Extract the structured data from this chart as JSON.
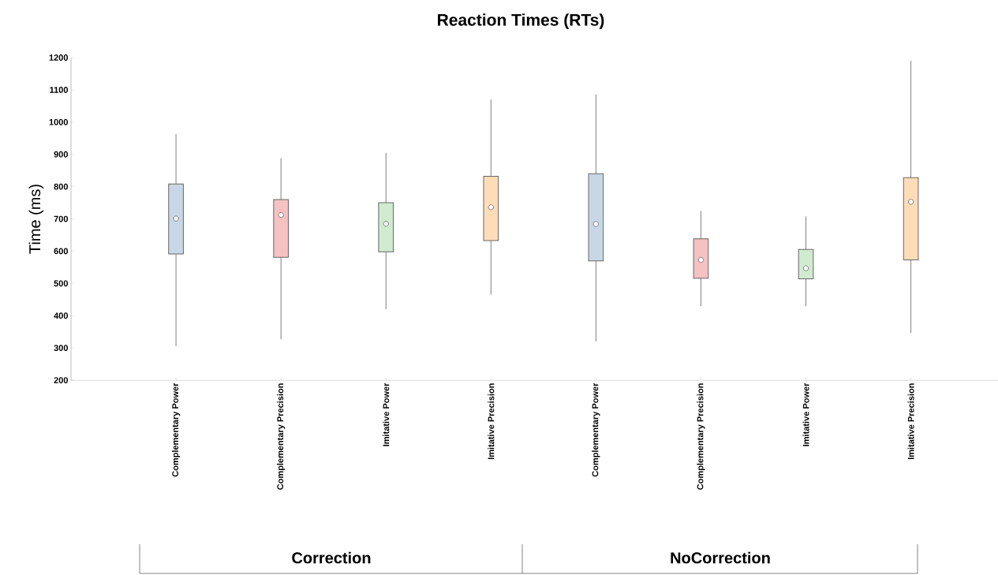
{
  "chart_data": {
    "type": "box",
    "title": "Reaction Times (RTs)",
    "ylabel": "Time (ms)",
    "categories": [
      "Complementary Power",
      "Complementary Precision",
      "Imitative Power",
      "Imitative Precision",
      "Complementary Power",
      "Complementary Precision",
      "Imitative Power",
      "Imitative Precision"
    ],
    "colors": [
      "#c8d7e5",
      "#f5c1c1",
      "#d0ebd0",
      "#fedcb8",
      "#c8d7e5",
      "#f5c1c1",
      "#d0ebd0",
      "#fedcb8"
    ],
    "boxes": [
      {
        "low": 305,
        "q1": 591,
        "median": 701,
        "q3": 808,
        "high": 963
      },
      {
        "low": 327,
        "q1": 581,
        "median": 712,
        "q3": 760,
        "high": 888
      },
      {
        "low": 420,
        "q1": 598,
        "median": 685,
        "q3": 750,
        "high": 905
      },
      {
        "low": 465,
        "q1": 633,
        "median": 736,
        "q3": 832,
        "high": 1070
      },
      {
        "low": 320,
        "q1": 570,
        "median": 684,
        "q3": 840,
        "high": 1086
      },
      {
        "low": 429,
        "q1": 516,
        "median": 573,
        "q3": 638,
        "high": 725
      },
      {
        "low": 430,
        "q1": 514,
        "median": 547,
        "q3": 605,
        "high": 708
      },
      {
        "low": 346,
        "q1": 573,
        "median": 753,
        "q3": 828,
        "high": 1190
      }
    ],
    "ylim": [
      200,
      1200
    ],
    "yticks": [
      200,
      300,
      400,
      500,
      600,
      700,
      800,
      900,
      1000,
      1100,
      1200
    ],
    "annotations": [
      "Correction",
      "NoCorrection"
    ]
  }
}
